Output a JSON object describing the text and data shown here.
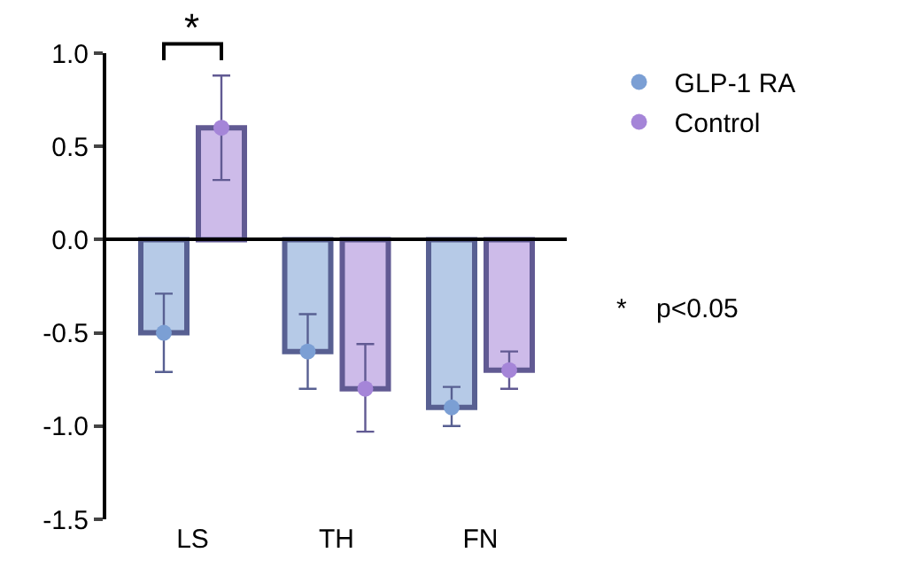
{
  "chart_data": {
    "type": "bar",
    "categories": [
      "LS",
      "TH",
      "FN"
    ],
    "series": [
      {
        "color": "#b6cae7",
        "values": [
          -0.5,
          -0.6,
          -0.9
        ],
        "errors": [
          [
            -0.71,
            -0.29
          ],
          [
            -0.8,
            -0.4
          ],
          [
            -1.0,
            -0.79
          ]
        ]
      },
      {
        "color": "#cdbbe9",
        "values": [
          0.6,
          -0.8,
          -0.7
        ],
        "errors": [
          [
            0.32,
            0.88
          ],
          [
            -1.03,
            -0.56
          ],
          [
            -0.8,
            -0.6
          ]
        ]
      },
      {
        "type": "scatter",
        "name": "GLP-1 RA",
        "color": "#7b9fd4",
        "values": [
          -0.5,
          -0.6,
          -0.9
        ]
      },
      {
        "type": "scatter",
        "name": "Control",
        "color": "#a585d8",
        "values": [
          0.6,
          -0.8,
          -0.7
        ]
      }
    ],
    "ylim": [
      -1.5,
      1.0
    ],
    "yticks": [
      {
        "value": -1.5,
        "label": "-1.5"
      },
      {
        "value": -1.0,
        "label": "-1.0"
      },
      {
        "value": -0.5,
        "label": "-0.5"
      },
      {
        "value": 0.0,
        "label": "0.0"
      },
      {
        "value": 0.5,
        "label": "0.5"
      },
      {
        "value": 1.0,
        "label": "1.0"
      }
    ],
    "marker": "circle",
    "legend": "top right",
    "annotations": [
      "*",
      "*    p<0.05"
    ]
  }
}
